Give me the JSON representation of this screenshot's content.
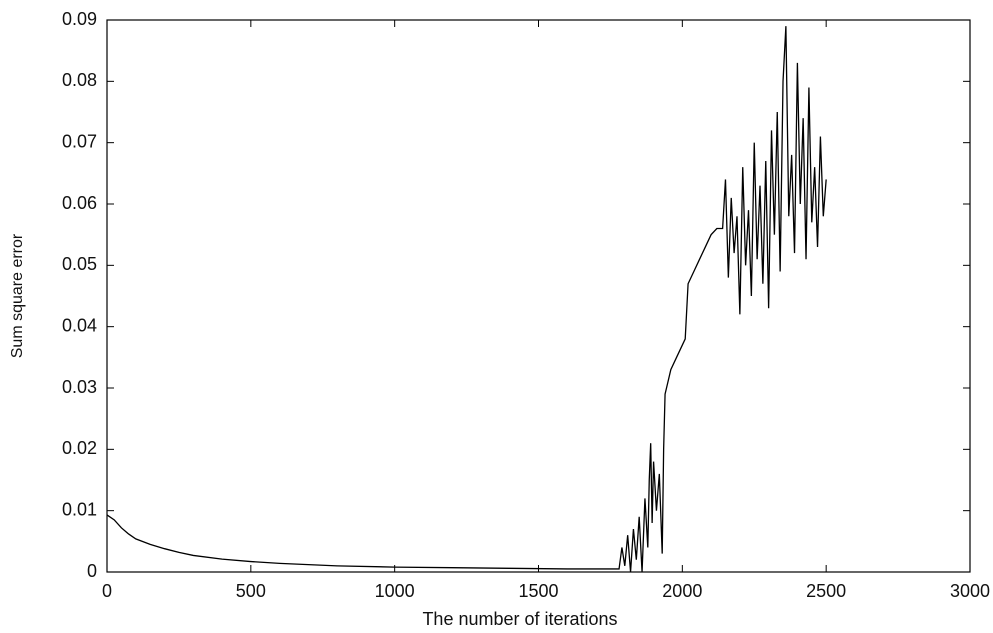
{
  "chart_data": {
    "type": "line",
    "xlabel": "The number of iterations",
    "ylabel": "Sum square error",
    "x": [
      0,
      25,
      50,
      75,
      100,
      150,
      200,
      250,
      300,
      400,
      500,
      600,
      700,
      800,
      1000,
      1200,
      1400,
      1600,
      1780,
      1790,
      1800,
      1810,
      1820,
      1830,
      1840,
      1850,
      1860,
      1870,
      1880,
      1885,
      1890,
      1895,
      1900,
      1910,
      1920,
      1930,
      1935,
      1940,
      1950,
      1960,
      1980,
      2000,
      2010,
      2020,
      2040,
      2060,
      2080,
      2100,
      2120,
      2140,
      2150,
      2160,
      2170,
      2180,
      2190,
      2200,
      2210,
      2220,
      2230,
      2240,
      2250,
      2260,
      2270,
      2280,
      2290,
      2300,
      2310,
      2320,
      2330,
      2340,
      2350,
      2360,
      2370,
      2380,
      2390,
      2400,
      2410,
      2420,
      2430,
      2440,
      2450,
      2460,
      2470,
      2480,
      2490,
      2500
    ],
    "series": [
      {
        "color": "#000000",
        "values": [
          0.0093,
          0.0085,
          0.0072,
          0.0062,
          0.0054,
          0.0045,
          0.0038,
          0.0032,
          0.0027,
          0.0021,
          0.0017,
          0.0014,
          0.0012,
          0.001,
          0.0008,
          0.0007,
          0.0006,
          0.0005,
          0.0005,
          0.004,
          0.001,
          0.006,
          0,
          0.007,
          0.002,
          0.009,
          0,
          0.012,
          0.004,
          0.015,
          0.021,
          0.008,
          0.018,
          0.01,
          0.016,
          0.003,
          0.02,
          0.029,
          0.031,
          0.033,
          0.035,
          0.037,
          0.038,
          0.047,
          0.049,
          0.051,
          0.053,
          0.055,
          0.056,
          0.056,
          0.064,
          0.048,
          0.061,
          0.052,
          0.058,
          0.042,
          0.066,
          0.05,
          0.059,
          0.045,
          0.07,
          0.051,
          0.063,
          0.047,
          0.067,
          0.043,
          0.072,
          0.055,
          0.075,
          0.049,
          0.08,
          0.089,
          0.058,
          0.068,
          0.052,
          0.083,
          0.06,
          0.074,
          0.051,
          0.079,
          0.057,
          0.066,
          0.053,
          0.071,
          0.058,
          0.064
        ]
      }
    ],
    "xlim": [
      0,
      3000
    ],
    "xticks": [
      0,
      500,
      1000,
      1500,
      2000,
      2500,
      3000
    ],
    "ylim": [
      0,
      0.09
    ],
    "yticks": [
      0,
      0.01,
      0.02,
      0.03,
      0.04,
      0.05,
      0.06,
      0.07,
      0.08,
      0.09
    ]
  }
}
